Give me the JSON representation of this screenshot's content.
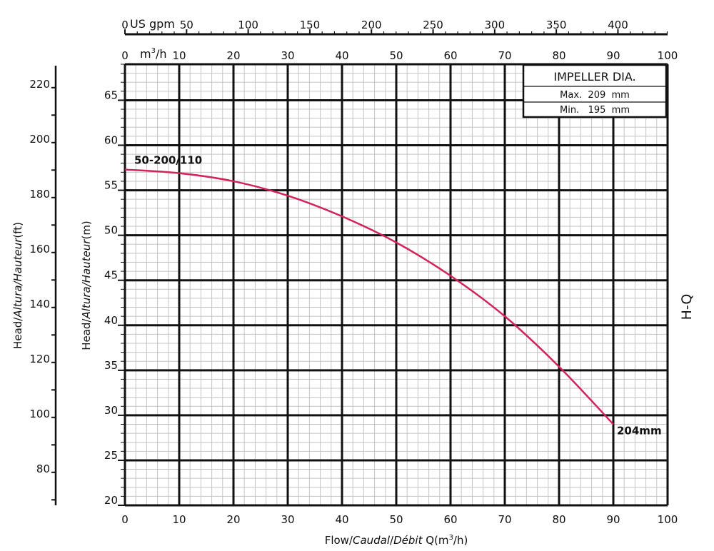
{
  "chart_data": {
    "type": "line",
    "title": "",
    "side_label": "H-Q",
    "xlabel": {
      "prefix": "Flow/",
      "italic1": "Caudal",
      "sep": "/",
      "italic2": "Débit",
      "suffix": " Q(m",
      "sup": "3",
      "end": "/h)"
    },
    "ylabel_m": {
      "text1": "Head/",
      "italic": "Altura/Hauteur",
      "unit": "(m)"
    },
    "ylabel_ft": {
      "text1": "Head/",
      "italic": "Altura/Hauteur",
      "unit": "(ft)"
    },
    "x_axis": {
      "range": [
        0,
        100
      ],
      "ticks": [
        "0",
        "10",
        "20",
        "30",
        "40",
        "50",
        "60",
        "70",
        "80",
        "90",
        "100"
      ]
    },
    "y_axis_m": {
      "range": [
        20,
        69
      ],
      "ticks": [
        "20",
        "25",
        "30",
        "35",
        "40",
        "45",
        "50",
        "55",
        "60",
        "65"
      ]
    },
    "y_axis_ft": {
      "ticks": [
        "80",
        "100",
        "120",
        "140",
        "160",
        "180",
        "200",
        "220"
      ],
      "range_ft": [
        68,
        228
      ]
    },
    "top_axis_m3h": {
      "unit_label": "m",
      "unit_sup": "3",
      "unit_end": "/h",
      "ticks": [
        "0",
        "10",
        "20",
        "30",
        "40",
        "50",
        "60",
        "70",
        "80",
        "90",
        "100"
      ]
    },
    "top_axis_gpm": {
      "unit_label": "US gpm",
      "ticks": [
        "0",
        "50",
        "100",
        "150",
        "200",
        "250",
        "300",
        "350",
        "400"
      ],
      "values": [
        0,
        50,
        100,
        150,
        200,
        250,
        300,
        350,
        400
      ]
    },
    "legend_box": {
      "title": "IMPELLER DIA.",
      "rows": [
        "Max.  209  mm",
        "Min.   195  mm"
      ]
    },
    "series": [
      {
        "name": "50-200/110",
        "end_label": "204mm",
        "color": "#d0245a",
        "x": [
          0,
          10,
          20,
          30,
          40,
          50,
          60,
          70,
          80,
          90
        ],
        "y": [
          57.3,
          56.9,
          56.0,
          54.4,
          52.1,
          49.2,
          45.5,
          41.0,
          35.4,
          29.0
        ]
      }
    ]
  }
}
